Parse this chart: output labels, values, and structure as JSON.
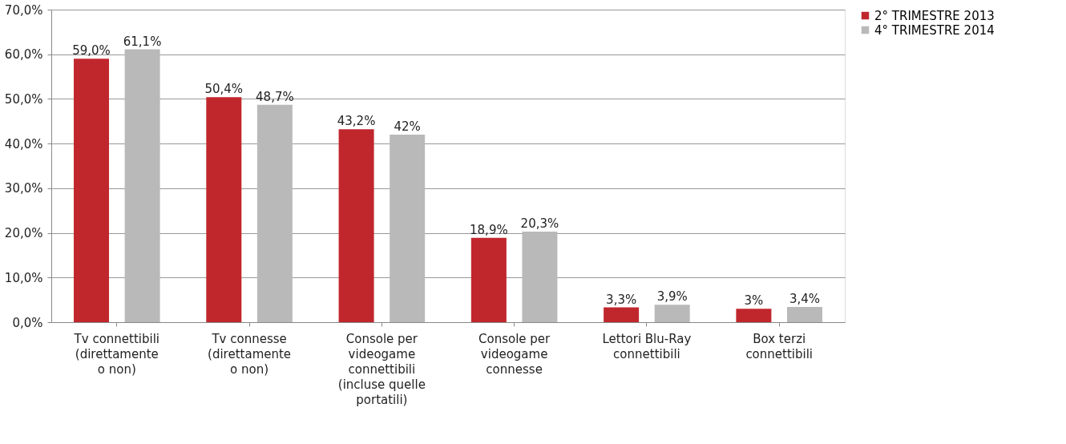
{
  "chart_data": {
    "type": "bar",
    "categories": [
      "Tv connettibili\n(direttamente\no non)",
      "Tv connesse\n(direttamente\no non)",
      "Console per\nvideogame\nconnettibili\n(incluse quelle\nportatili)",
      "Console per\nvideogame\nconnesse",
      "Lettori Blu-Ray\nconnettibili",
      "Box terzi\nconnettibili"
    ],
    "series": [
      {
        "name": "2° TRIMESTRE 2013",
        "color": "#c0272d",
        "values": [
          59.0,
          50.4,
          43.2,
          18.9,
          3.3,
          3
        ],
        "value_labels": [
          "59,0%",
          "50,4%",
          "43,2%",
          "18,9%",
          "3,3%",
          "3%"
        ]
      },
      {
        "name": "4° TRIMESTRE 2014",
        "color": "#b9b9b9",
        "values": [
          61.1,
          48.7,
          42,
          20.3,
          3.9,
          3.4
        ],
        "value_labels": [
          "61,1%",
          "48,7%",
          "42%",
          "20,3%",
          "3,9%",
          "3,4%"
        ]
      }
    ],
    "ylim": [
      0,
      70
    ],
    "yticks": [
      {
        "value": 0,
        "label": "0,0%"
      },
      {
        "value": 10,
        "label": "10,0%"
      },
      {
        "value": 20,
        "label": "20,0%"
      },
      {
        "value": 30,
        "label": "30,0%"
      },
      {
        "value": 40,
        "label": "40,0%"
      },
      {
        "value": 50,
        "label": "50,0%"
      },
      {
        "value": 60,
        "label": "60,0%"
      },
      {
        "value": 70,
        "label": "70,0%"
      }
    ],
    "grid": "y",
    "legend": "right"
  }
}
